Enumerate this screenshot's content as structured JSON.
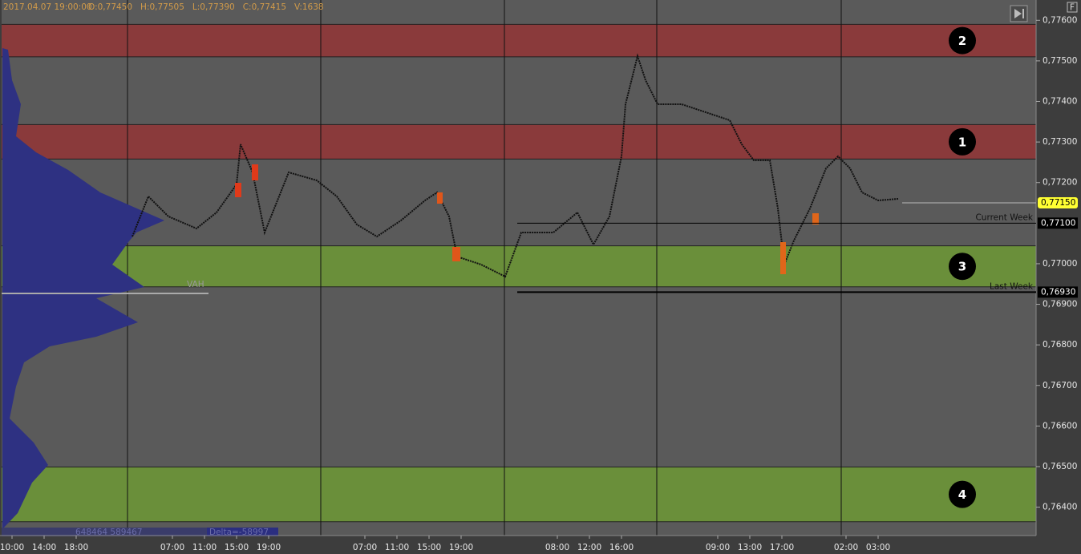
{
  "header": {
    "datetime": "2017.04.07 19:00:00",
    "ohlcv": [
      "O:0,77450",
      "H:0,77505",
      "L:0,77390",
      "C:0,77415",
      "V:1638"
    ]
  },
  "corner_button": "F",
  "price_axis": {
    "ylim": [
      0.7765,
      0.7633
    ],
    "ticks": [
      {
        "value": 0.776,
        "label": "0,77600"
      },
      {
        "value": 0.775,
        "label": "0,77500"
      },
      {
        "value": 0.774,
        "label": "0,77400"
      },
      {
        "value": 0.773,
        "label": "0,77300"
      },
      {
        "value": 0.772,
        "label": "0,77200"
      },
      {
        "value": 0.77,
        "label": "0,77000"
      },
      {
        "value": 0.769,
        "label": "0,76900"
      },
      {
        "value": 0.768,
        "label": "0,76800"
      },
      {
        "value": 0.767,
        "label": "0,76700"
      },
      {
        "value": 0.766,
        "label": "0,76600"
      },
      {
        "value": 0.765,
        "label": "0,76500"
      },
      {
        "value": 0.764,
        "label": "0,76400"
      }
    ]
  },
  "zones": [
    {
      "label": "2",
      "from": 0.7759,
      "to": 0.7751,
      "color": "#8a3a3b"
    },
    {
      "label": "1",
      "from": 0.77343,
      "to": 0.77258,
      "color": "#8a3a3b"
    },
    {
      "label": "3",
      "from": 0.77044,
      "to": 0.76943,
      "color": "#6a8f3a"
    },
    {
      "label": "4",
      "from": 0.76499,
      "to": 0.76364,
      "color": "#6a8f3a"
    }
  ],
  "levels": [
    {
      "name": "Current Week",
      "value": 0.771,
      "label": "0,77100"
    },
    {
      "name": "Last Week",
      "value": 0.7693,
      "label": "0,76930"
    }
  ],
  "last_price": {
    "value": 0.7715,
    "label": "0,77150",
    "color": "#ffff33"
  },
  "profile": {
    "vah_label": "VAH",
    "volumes": "648464 589467",
    "delta": "Delta=-58997"
  },
  "time_axis": {
    "categories": [
      "10:00",
      "14:00",
      "18:00",
      null,
      null,
      "07:00",
      "11:00",
      "15:00",
      "19:00",
      null,
      null,
      "07:00",
      "11:00",
      "15:00",
      "19:00",
      null,
      null,
      "08:00",
      "12:00",
      "16:00",
      null,
      null,
      "09:00",
      "13:00",
      "17:00",
      null,
      "02:00",
      "03:00"
    ]
  }
}
